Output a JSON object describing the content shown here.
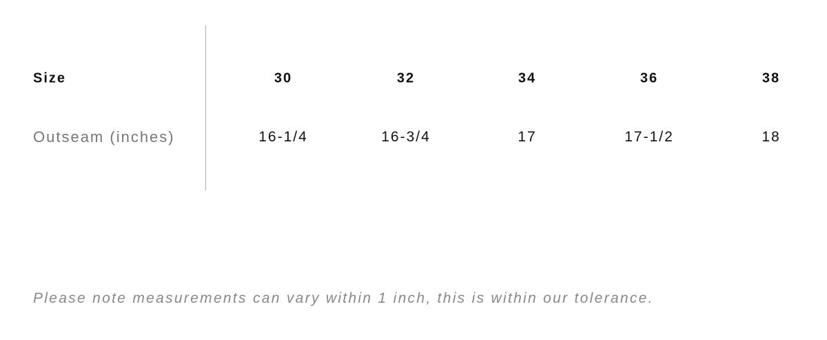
{
  "table": {
    "header": [
      "Size",
      "30",
      "32",
      "34",
      "36",
      "38"
    ],
    "rows": [
      [
        "Outseam (inches)",
        "16-1/4",
        "16-3/4",
        "17",
        "17-1/2",
        "18"
      ]
    ]
  },
  "note": "Please note measurements can vary within 1 inch, this is within our tolerance."
}
